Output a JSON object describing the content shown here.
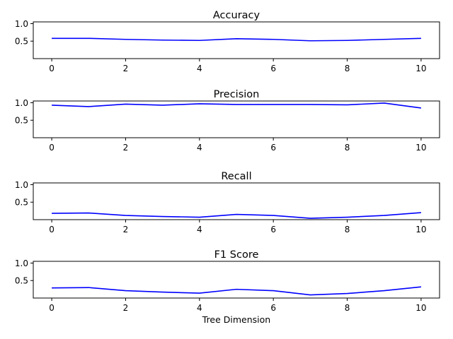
{
  "chart_data": [
    {
      "type": "line",
      "title": "Accuracy",
      "xlabel": "",
      "x": [
        0,
        1,
        2,
        3,
        4,
        5,
        6,
        7,
        8,
        9,
        10
      ],
      "series": [
        {
          "values": [
            0.58,
            0.58,
            0.55,
            0.53,
            0.52,
            0.57,
            0.55,
            0.51,
            0.52,
            0.55,
            0.58
          ]
        }
      ],
      "xlim": [
        -0.5,
        10.5
      ],
      "ylim": [
        0.0,
        1.05
      ],
      "xticks": [
        0,
        2,
        4,
        6,
        8,
        10
      ],
      "yticks": [
        0.5,
        1.0
      ],
      "grid": false,
      "color": "#0000ff"
    },
    {
      "type": "line",
      "title": "Precision",
      "xlabel": "",
      "x": [
        0,
        1,
        2,
        3,
        4,
        5,
        6,
        7,
        8,
        9,
        10
      ],
      "series": [
        {
          "values": [
            0.93,
            0.89,
            0.96,
            0.93,
            0.97,
            0.95,
            0.95,
            0.95,
            0.94,
            0.99,
            0.85
          ]
        }
      ],
      "xlim": [
        -0.5,
        10.5
      ],
      "ylim": [
        0.0,
        1.05
      ],
      "xticks": [
        0,
        2,
        4,
        6,
        8,
        10
      ],
      "yticks": [
        0.5,
        1.0
      ],
      "grid": false,
      "color": "#0000ff"
    },
    {
      "type": "line",
      "title": "Recall",
      "xlabel": "",
      "x": [
        0,
        1,
        2,
        3,
        4,
        5,
        6,
        7,
        8,
        9,
        10
      ],
      "series": [
        {
          "values": [
            0.18,
            0.19,
            0.12,
            0.09,
            0.07,
            0.15,
            0.12,
            0.04,
            0.07,
            0.12,
            0.2
          ]
        }
      ],
      "xlim": [
        -0.5,
        10.5
      ],
      "ylim": [
        0.0,
        1.05
      ],
      "xticks": [
        0,
        2,
        4,
        6,
        8,
        10
      ],
      "yticks": [
        0.5,
        1.0
      ],
      "grid": false,
      "color": "#0000ff"
    },
    {
      "type": "line",
      "title": "F1 Score",
      "xlabel": "Tree Dimension",
      "x": [
        0,
        1,
        2,
        3,
        4,
        5,
        6,
        7,
        8,
        9,
        10
      ],
      "series": [
        {
          "values": [
            0.29,
            0.3,
            0.21,
            0.17,
            0.14,
            0.25,
            0.21,
            0.09,
            0.13,
            0.21,
            0.32
          ]
        }
      ],
      "xlim": [
        -0.5,
        10.5
      ],
      "ylim": [
        0.0,
        1.05
      ],
      "xticks": [
        0,
        2,
        4,
        6,
        8,
        10
      ],
      "yticks": [
        0.5,
        1.0
      ],
      "grid": false,
      "color": "#0000ff"
    }
  ]
}
